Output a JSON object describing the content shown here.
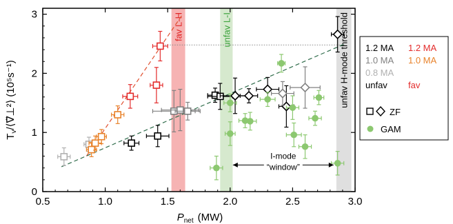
{
  "chart_data": {
    "type": "scatter",
    "xlabel": "P",
    "xlabel_sub": "net",
    "xlabel_unit": "(MW)",
    "ylabel": "T",
    "ylabel_sub": "v",
    "ylabel_den": "/⟨∇̃⊥²⟩",
    "ylabel_unit": "(10⁵s⁻¹)",
    "xlim": [
      0.5,
      3.0
    ],
    "ylim": [
      0,
      3.1
    ],
    "xticks": [
      "0.5",
      "1.0",
      "1.5",
      "2.0",
      "2.5",
      "3.0"
    ],
    "yticks": [
      "0",
      "1",
      "2",
      "3"
    ],
    "bands": [
      {
        "label": "fav L-H",
        "x0": 1.53,
        "x1": 1.64,
        "color": "#f4a6a6",
        "text_color": "#e02424"
      },
      {
        "label": "unfav L-I",
        "x0": 1.92,
        "x1": 2.02,
        "color": "#cfe5c6",
        "text_color": "#3ba33b"
      },
      {
        "label": "unfav H-mode threshold",
        "x0": 2.85,
        "x1": 2.97,
        "color": "#d9d9d9",
        "text_color": "#000000"
      }
    ],
    "annotation": {
      "line1": "I-mode",
      "line2": "“window”",
      "x_from": 2.0,
      "x_to": 2.85,
      "y": 0.45
    },
    "hline": {
      "y": 2.48,
      "x0": 1.42,
      "x1": 2.93
    },
    "fit_lines": [
      {
        "name": "fav",
        "color": "#e05030",
        "points": [
          [
            0.85,
            0.6
          ],
          [
            1.62,
            3.0
          ]
        ]
      },
      {
        "name": "unfav",
        "color": "#2e6b4a",
        "points": [
          [
            0.65,
            0.42
          ],
          [
            2.92,
            2.5
          ]
        ]
      }
    ],
    "series": [
      {
        "name": "1.2 MA unfav",
        "color": "#000000",
        "marker": "square",
        "points": [
          {
            "x": 1.21,
            "y": 0.82,
            "xerr": 0.06,
            "yerr": 0.12
          },
          {
            "x": 1.42,
            "y": 0.94,
            "xerr": 0.09,
            "yerr": 0.18
          },
          {
            "x": 1.88,
            "y": 1.63,
            "xerr": 0.06,
            "yerr": 0.12
          },
          {
            "x": 1.92,
            "y": 1.61,
            "xerr": 0.1,
            "yerr": 0.22
          }
        ]
      },
      {
        "name": "1.0 MA unfav",
        "color": "#808080",
        "marker": "square",
        "points": [
          {
            "x": 1.55,
            "y": 1.36,
            "xerr": 0.17,
            "yerr": 0.35
          },
          {
            "x": 1.6,
            "y": 1.38,
            "xerr": 0.15,
            "yerr": 0.35
          },
          {
            "x": 1.66,
            "y": 1.36,
            "xerr": 0.1,
            "yerr": 0.15
          }
        ]
      },
      {
        "name": "0.8 MA unfav",
        "color": "#b0b0b0",
        "marker": "square",
        "points": [
          {
            "x": 0.67,
            "y": 0.59,
            "xerr": 0.05,
            "yerr": 0.15
          },
          {
            "x": 0.87,
            "y": 0.8,
            "xerr": 0.04,
            "yerr": 0.12
          }
        ]
      },
      {
        "name": "1.2 MA fav",
        "color": "#e32b2b",
        "marker": "square",
        "points": [
          {
            "x": 1.2,
            "y": 1.61,
            "xerr": 0.06,
            "yerr": 0.2
          },
          {
            "x": 1.41,
            "y": 1.8,
            "xerr": 0.05,
            "yerr": 0.3
          },
          {
            "x": 1.44,
            "y": 2.46,
            "xerr": 0.06,
            "yerr": 0.25
          }
        ]
      },
      {
        "name": "1.0 MA fav",
        "color": "#e8822a",
        "marker": "square",
        "points": [
          {
            "x": 0.89,
            "y": 0.71,
            "xerr": 0.04,
            "yerr": 0.12
          },
          {
            "x": 0.92,
            "y": 0.82,
            "xerr": 0.05,
            "yerr": 0.12
          },
          {
            "x": 0.97,
            "y": 0.93,
            "xerr": 0.04,
            "yerr": 0.12
          },
          {
            "x": 1.1,
            "y": 1.3,
            "xerr": 0.05,
            "yerr": 0.15
          }
        ]
      },
      {
        "name": "1.2 MA unfav ZF",
        "color": "#000000",
        "marker": "diamond",
        "points": [
          {
            "x": 2.04,
            "y": 1.62,
            "xerr": 0.12,
            "yerr": 0.3
          },
          {
            "x": 2.15,
            "y": 1.62,
            "xerr": 0.07,
            "yerr": 0.12
          },
          {
            "x": 2.3,
            "y": 1.73,
            "xerr": 0.09,
            "yerr": 0.2
          },
          {
            "x": 2.45,
            "y": 1.44,
            "xerr": 0.06,
            "yerr": 0.35
          },
          {
            "x": 2.86,
            "y": 2.66,
            "xerr": 0.05,
            "yerr": 0.3
          }
        ]
      },
      {
        "name": "1.0 MA unfav ZF",
        "color": "#808080",
        "marker": "diamond",
        "points": [
          {
            "x": 2.42,
            "y": 1.66,
            "xerr": 0.09,
            "yerr": 0.2
          },
          {
            "x": 2.6,
            "y": 1.76,
            "xerr": 0.12,
            "yerr": 0.35
          }
        ]
      },
      {
        "name": "GAM",
        "color": "#8cc870",
        "marker": "circle",
        "points": [
          {
            "x": 1.89,
            "y": 0.4,
            "xerr": 0.05,
            "yerr": 0.2
          },
          {
            "x": 2.0,
            "y": 0.98,
            "xerr": 0.04,
            "yerr": 0.2
          },
          {
            "x": 2.0,
            "y": 1.5,
            "xerr": 0.05,
            "yerr": 0.15
          },
          {
            "x": 2.12,
            "y": 1.2,
            "xerr": 0.05,
            "yerr": 0.12
          },
          {
            "x": 2.16,
            "y": 1.19,
            "xerr": 0.05,
            "yerr": 0.15
          },
          {
            "x": 2.3,
            "y": 1.56,
            "xerr": 0.06,
            "yerr": 0.12
          },
          {
            "x": 2.41,
            "y": 2.17,
            "xerr": 0.03,
            "yerr": 0.15
          },
          {
            "x": 2.5,
            "y": 1.42,
            "xerr": 0.05,
            "yerr": 0.2
          },
          {
            "x": 2.51,
            "y": 0.96,
            "xerr": 0.06,
            "yerr": 0.2
          },
          {
            "x": 2.6,
            "y": 0.76,
            "xerr": 0.05,
            "yerr": 0.2
          },
          {
            "x": 2.68,
            "y": 1.24,
            "xerr": 0.05,
            "yerr": 0.12
          },
          {
            "x": 2.71,
            "y": 1.59,
            "xerr": 0.04,
            "yerr": 0.12
          },
          {
            "x": 2.86,
            "y": 0.48,
            "xerr": 0.05,
            "yerr": 0.2
          }
        ]
      }
    ]
  },
  "legend": {
    "rows": [
      [
        {
          "text": "1.2 MA",
          "color": "#000000"
        },
        {
          "text": "1.2 MA",
          "color": "#e32b2b"
        }
      ],
      [
        {
          "text": "1.0 MA",
          "color": "#808080"
        },
        {
          "text": "1.0 MA",
          "color": "#e8822a"
        }
      ],
      [
        {
          "text": "0.8 MA",
          "color": "#b0b0b0"
        }
      ],
      [
        {
          "text": "unfav",
          "color": "#000000"
        },
        {
          "text": "fav",
          "color": "#e32b2b"
        }
      ]
    ],
    "zf_label": "ZF",
    "gam_label": "GAM"
  }
}
